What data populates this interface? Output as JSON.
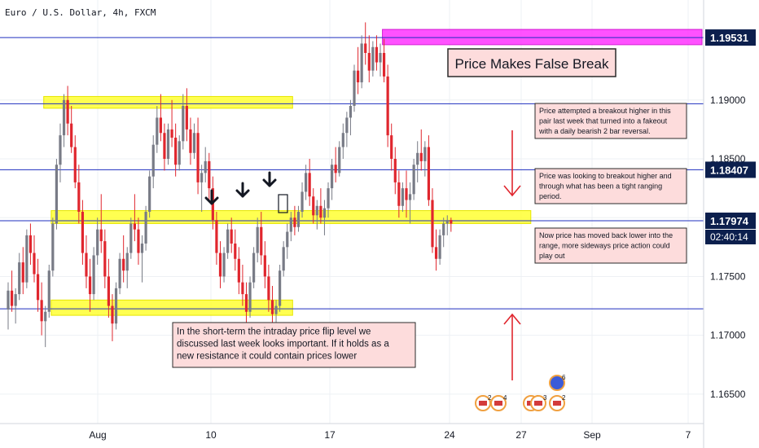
{
  "header": {
    "symbol_title": "Euro / U.S. Dollar, 4h, FXCM"
  },
  "colors": {
    "up": "#787b86",
    "down": "#e0262e",
    "yellow_zone": "#ffff33",
    "magenta_zone": "#ff33ff",
    "level_line": "#1f2fbf",
    "label_bg": "#0c1f4d",
    "note_bg": "#fddcdc",
    "arrow_red": "#e0262e"
  },
  "chart_data": {
    "type": "candlestick",
    "x_tick_labels": [
      "Aug",
      "10",
      "17",
      "24",
      "27",
      "Sep",
      "7"
    ],
    "y_tick_labels": [
      "1.16500",
      "1.17000",
      "1.17500",
      "1.18000",
      "1.18500",
      "1.19000"
    ],
    "ylim": [
      1.1625,
      1.1985
    ],
    "grid": true,
    "horizontal_levels": [
      {
        "price": 1.19531,
        "label": "1.19531"
      },
      {
        "price": 1.18968
      },
      {
        "price": 1.18407,
        "label": "1.18407"
      },
      {
        "price": 1.17974,
        "label": "1.17974",
        "countdown": "02:40:14"
      },
      {
        "price": 1.17225
      }
    ],
    "zones": [
      {
        "color": "yellow",
        "bar_start": 10,
        "bar_end": 76,
        "price_top": 1.1903,
        "price_bottom": 1.1893
      },
      {
        "color": "yellow",
        "bar_start": 12,
        "bar_end": 140,
        "price_top": 1.1806,
        "price_bottom": 1.1795
      },
      {
        "color": "yellow",
        "bar_start": 12,
        "bar_end": 76,
        "price_top": 1.173,
        "price_bottom": 1.1717
      },
      {
        "color": "magenta",
        "bar_start": 101,
        "bar_end": 186,
        "price_top": 1.196,
        "price_bottom": 1.1947
      }
    ],
    "candles": [
      [
        1.1722,
        1.1745,
        1.1705,
        1.1738
      ],
      [
        1.1738,
        1.1755,
        1.172,
        1.1725
      ],
      [
        1.1725,
        1.174,
        1.171,
        1.1735
      ],
      [
        1.1735,
        1.177,
        1.173,
        1.1762
      ],
      [
        1.1762,
        1.1775,
        1.1735,
        1.1745
      ],
      [
        1.1745,
        1.179,
        1.174,
        1.1785
      ],
      [
        1.1785,
        1.1795,
        1.176,
        1.177
      ],
      [
        1.177,
        1.1785,
        1.1745,
        1.1752
      ],
      [
        1.1752,
        1.1765,
        1.172,
        1.173
      ],
      [
        1.173,
        1.1745,
        1.17,
        1.1712
      ],
      [
        1.1712,
        1.1725,
        1.169,
        1.172
      ],
      [
        1.172,
        1.176,
        1.1715,
        1.1755
      ],
      [
        1.1755,
        1.18,
        1.175,
        1.1795
      ],
      [
        1.1795,
        1.185,
        1.179,
        1.1845
      ],
      [
        1.1845,
        1.188,
        1.183,
        1.187
      ],
      [
        1.187,
        1.1905,
        1.186,
        1.19
      ],
      [
        1.19,
        1.1912,
        1.187,
        1.188
      ],
      [
        1.188,
        1.1895,
        1.1855,
        1.186
      ],
      [
        1.186,
        1.187,
        1.1825,
        1.183
      ],
      [
        1.183,
        1.1845,
        1.1795,
        1.1805
      ],
      [
        1.1805,
        1.1815,
        1.176,
        1.177
      ],
      [
        1.177,
        1.1785,
        1.174,
        1.175
      ],
      [
        1.175,
        1.1765,
        1.172,
        1.1735
      ],
      [
        1.1735,
        1.1775,
        1.173,
        1.1768
      ],
      [
        1.1768,
        1.18,
        1.176,
        1.179
      ],
      [
        1.179,
        1.182,
        1.177,
        1.178
      ],
      [
        1.178,
        1.179,
        1.174,
        1.175
      ],
      [
        1.175,
        1.1765,
        1.1715,
        1.1725
      ],
      [
        1.1725,
        1.1735,
        1.1695,
        1.171
      ],
      [
        1.171,
        1.1745,
        1.1705,
        1.174
      ],
      [
        1.174,
        1.177,
        1.1735,
        1.1765
      ],
      [
        1.1765,
        1.1785,
        1.1745,
        1.1755
      ],
      [
        1.1755,
        1.1775,
        1.174,
        1.177
      ],
      [
        1.177,
        1.18,
        1.1765,
        1.1795
      ],
      [
        1.1795,
        1.182,
        1.178,
        1.179
      ],
      [
        1.179,
        1.18,
        1.176,
        1.177
      ],
      [
        1.177,
        1.1785,
        1.1745,
        1.1778
      ],
      [
        1.1778,
        1.181,
        1.1772,
        1.1805
      ],
      [
        1.1805,
        1.184,
        1.18,
        1.1835
      ],
      [
        1.1835,
        1.187,
        1.1825,
        1.1862
      ],
      [
        1.1862,
        1.1895,
        1.1855,
        1.1885
      ],
      [
        1.1885,
        1.1905,
        1.1865,
        1.1872
      ],
      [
        1.1872,
        1.188,
        1.184,
        1.185
      ],
      [
        1.185,
        1.188,
        1.1845,
        1.1875
      ],
      [
        1.1875,
        1.19,
        1.186,
        1.1868
      ],
      [
        1.1868,
        1.188,
        1.1835,
        1.1845
      ],
      [
        1.1845,
        1.187,
        1.184,
        1.1865
      ],
      [
        1.1865,
        1.1905,
        1.1858,
        1.1895
      ],
      [
        1.1895,
        1.191,
        1.1865,
        1.1875
      ],
      [
        1.1875,
        1.1885,
        1.1845,
        1.1855
      ],
      [
        1.1855,
        1.188,
        1.185,
        1.1872
      ],
      [
        1.1872,
        1.1885,
        1.182,
        1.183
      ],
      [
        1.183,
        1.1845,
        1.1805,
        1.1838
      ],
      [
        1.1838,
        1.186,
        1.183,
        1.1848
      ],
      [
        1.1848,
        1.1855,
        1.1815,
        1.1825
      ],
      [
        1.1825,
        1.1835,
        1.179,
        1.1798
      ],
      [
        1.1798,
        1.1805,
        1.176,
        1.177
      ],
      [
        1.177,
        1.178,
        1.174,
        1.175
      ],
      [
        1.175,
        1.1775,
        1.1745,
        1.177
      ],
      [
        1.177,
        1.1795,
        1.1765,
        1.179
      ],
      [
        1.179,
        1.18,
        1.177,
        1.1778
      ],
      [
        1.1778,
        1.179,
        1.1755,
        1.1765
      ],
      [
        1.1765,
        1.1775,
        1.1735,
        1.1745
      ],
      [
        1.1745,
        1.176,
        1.1725,
        1.1735
      ],
      [
        1.1735,
        1.1745,
        1.171,
        1.172
      ],
      [
        1.172,
        1.175,
        1.1715,
        1.1745
      ],
      [
        1.1745,
        1.1775,
        1.174,
        1.177
      ],
      [
        1.177,
        1.18,
        1.1762,
        1.1792
      ],
      [
        1.1792,
        1.1805,
        1.176,
        1.1768
      ],
      [
        1.1768,
        1.178,
        1.174,
        1.175
      ],
      [
        1.175,
        1.176,
        1.172,
        1.173
      ],
      [
        1.173,
        1.1742,
        1.171,
        1.1718
      ],
      [
        1.1718,
        1.173,
        1.1705,
        1.1725
      ],
      [
        1.1725,
        1.176,
        1.172,
        1.1755
      ],
      [
        1.1755,
        1.178,
        1.175,
        1.1775
      ],
      [
        1.1775,
        1.1795,
        1.1765,
        1.1788
      ],
      [
        1.1788,
        1.1805,
        1.178,
        1.18
      ],
      [
        1.18,
        1.181,
        1.1785,
        1.1792
      ],
      [
        1.1792,
        1.181,
        1.1788,
        1.1805
      ],
      [
        1.1805,
        1.183,
        1.18,
        1.1822
      ],
      [
        1.1822,
        1.1845,
        1.1815,
        1.1838
      ],
      [
        1.1838,
        1.185,
        1.181,
        1.1818
      ],
      [
        1.1818,
        1.1825,
        1.1795,
        1.1802
      ],
      [
        1.1802,
        1.1815,
        1.179,
        1.181
      ],
      [
        1.181,
        1.1825,
        1.1795,
        1.18
      ],
      [
        1.18,
        1.1815,
        1.1785,
        1.1808
      ],
      [
        1.1808,
        1.183,
        1.18,
        1.1825
      ],
      [
        1.1825,
        1.185,
        1.1815,
        1.1845
      ],
      [
        1.1845,
        1.186,
        1.183,
        1.1838
      ],
      [
        1.1838,
        1.1865,
        1.1835,
        1.186
      ],
      [
        1.186,
        1.188,
        1.185,
        1.1872
      ],
      [
        1.1872,
        1.189,
        1.186,
        1.1885
      ],
      [
        1.1885,
        1.19,
        1.187,
        1.1895
      ],
      [
        1.1895,
        1.193,
        1.189,
        1.1925
      ],
      [
        1.1925,
        1.1945,
        1.1905,
        1.1915
      ],
      [
        1.1915,
        1.1955,
        1.191,
        1.1948
      ],
      [
        1.1948,
        1.1966,
        1.193,
        1.194
      ],
      [
        1.194,
        1.1955,
        1.1915,
        1.1925
      ],
      [
        1.1925,
        1.195,
        1.192,
        1.1945
      ],
      [
        1.1945,
        1.1955,
        1.1925,
        1.1932
      ],
      [
        1.1932,
        1.1948,
        1.192,
        1.194
      ],
      [
        1.194,
        1.1952,
        1.1915,
        1.192
      ],
      [
        1.192,
        1.193,
        1.186,
        1.187
      ],
      [
        1.187,
        1.188,
        1.184,
        1.185
      ],
      [
        1.185,
        1.186,
        1.182,
        1.183
      ],
      [
        1.183,
        1.184,
        1.18,
        1.181
      ],
      [
        1.181,
        1.183,
        1.1805,
        1.1825
      ],
      [
        1.1825,
        1.184,
        1.18,
        1.1815
      ],
      [
        1.1815,
        1.183,
        1.1795,
        1.182
      ],
      [
        1.182,
        1.185,
        1.1815,
        1.1845
      ],
      [
        1.1845,
        1.1865,
        1.183,
        1.1855
      ],
      [
        1.1855,
        1.1875,
        1.184,
        1.1848
      ],
      [
        1.1848,
        1.1865,
        1.1835,
        1.186
      ],
      [
        1.186,
        1.187,
        1.181,
        1.1815
      ],
      [
        1.1815,
        1.1825,
        1.177,
        1.1775
      ],
      [
        1.1775,
        1.179,
        1.1755,
        1.1765
      ],
      [
        1.1765,
        1.179,
        1.176,
        1.1785
      ],
      [
        1.1785,
        1.18,
        1.1775,
        1.1795
      ],
      [
        1.1795,
        1.1802,
        1.1785,
        1.1798
      ],
      [
        1.1798,
        1.18,
        1.1788,
        1.1795
      ]
    ]
  },
  "annotations": {
    "headline": "Price Makes False Break",
    "note_1": [
      "Price attempted a breakout higher in this",
      "pair last week that turned into a fakeout",
      "with a daily bearish 2 bar reversal."
    ],
    "note_2": [
      "Price was looking to breakout higher and",
      "through what has been a tight ranging",
      "period."
    ],
    "note_3": [
      "Now price has moved back lower into the",
      "range, more sideways price action could",
      "play out"
    ],
    "note_4": [
      "In the short-term the intraday price flip level we",
      "discussed last week looks important. If it holds as a",
      "new resistance it could contain prices lower"
    ]
  },
  "event_flags": [
    {
      "label": "2",
      "kind": "us"
    },
    {
      "label": "4",
      "kind": "us"
    },
    {
      "label": "2",
      "kind": "us"
    },
    {
      "label": "3",
      "kind": "us"
    },
    {
      "label": "6",
      "kind": "eu"
    },
    {
      "label": "2",
      "kind": "us"
    }
  ]
}
